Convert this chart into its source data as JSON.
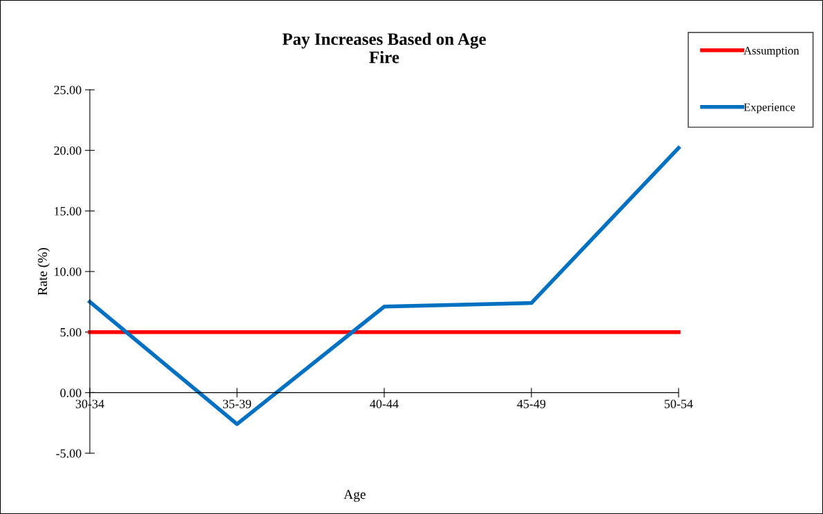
{
  "chart_data": {
    "type": "line",
    "title": "Pay Increases Based on Age\nFire",
    "xlabel": "Age",
    "ylabel": "Rate (%)",
    "categories": [
      "30-34",
      "35-39",
      "40-44",
      "45-49",
      "50-54"
    ],
    "series": [
      {
        "name": "Assumption",
        "color": "#ff0000",
        "values": [
          5,
          5,
          5,
          5,
          5
        ]
      },
      {
        "name": "Experience",
        "color": "#0070c0",
        "values": [
          7.5,
          -2.6,
          7.1,
          7.4,
          20.2
        ]
      }
    ],
    "ylim": [
      -5,
      25
    ],
    "yticks": [
      {
        "value": -5,
        "label": "-5.00"
      },
      {
        "value": 0,
        "label": "0.00"
      },
      {
        "value": 5,
        "label": "5.00"
      },
      {
        "value": 10,
        "label": "10.00"
      },
      {
        "value": 15,
        "label": "15.00"
      },
      {
        "value": 20,
        "label": "20.00"
      },
      {
        "value": 25,
        "label": "25.00"
      }
    ],
    "grid": false,
    "legend": "right",
    "marker": "none",
    "line_style": "solid"
  }
}
